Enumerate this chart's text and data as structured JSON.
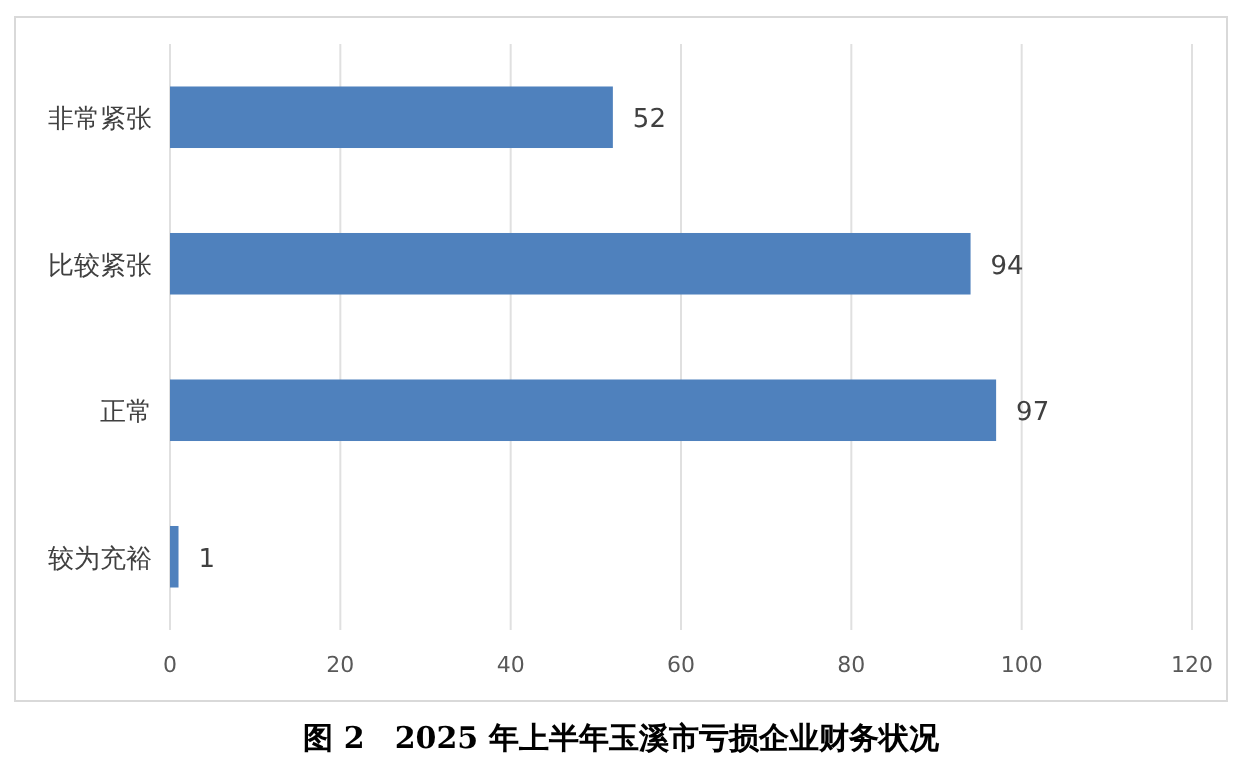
{
  "chart_data": {
    "type": "bar",
    "orientation": "horizontal",
    "title": "图 2　2025 年上半年玉溪市亏损企业财务状况",
    "categories": [
      "非常紧张",
      "比较紧张",
      "正常",
      "较为充裕"
    ],
    "values": [
      52,
      94,
      97,
      1
    ],
    "color": "#4f81bd",
    "xlim": [
      0,
      120
    ],
    "xticks": [
      0,
      20,
      40,
      60,
      80,
      100,
      120
    ],
    "grid": "x",
    "data_labels": true
  }
}
